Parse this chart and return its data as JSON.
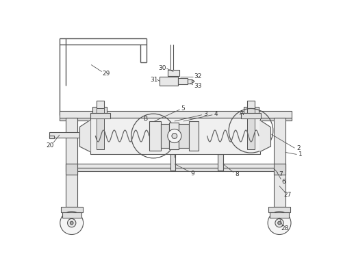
{
  "background_color": "#ffffff",
  "line_color": "#555555",
  "fig_width": 5.01,
  "fig_height": 4.03,
  "dpi": 100
}
